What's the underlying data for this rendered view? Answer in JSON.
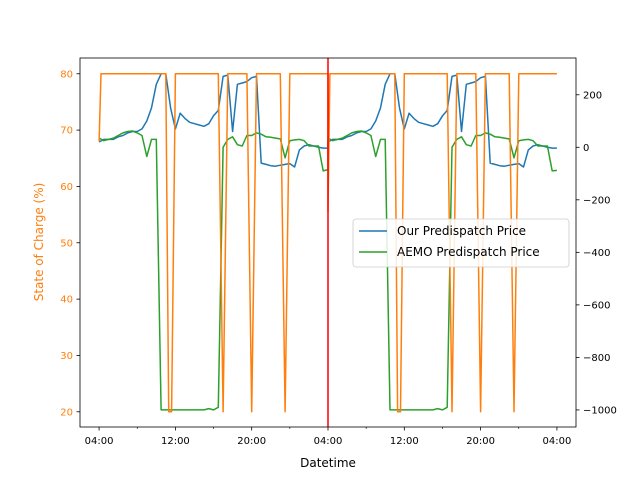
{
  "chart_data": {
    "type": "line",
    "xlabel": "Datetime",
    "ylabel_left": "State of Charge (%)",
    "x_hours_range": [
      -2,
      50
    ],
    "x_ticks": [
      {
        "hour": 0,
        "label": "04:00"
      },
      {
        "hour": 8,
        "label": "12:00"
      },
      {
        "hour": 16,
        "label": "20:00"
      },
      {
        "hour": 24,
        "label": "04:00"
      },
      {
        "hour": 32,
        "label": "12:00"
      },
      {
        "hour": 40,
        "label": "20:00"
      },
      {
        "hour": 48,
        "label": "04:00"
      }
    ],
    "x_minor_hours": [
      4,
      12,
      20,
      28,
      36,
      44
    ],
    "left_axis": {
      "ylim": [
        17.3,
        82.8
      ],
      "ticks": [
        20,
        30,
        40,
        50,
        60,
        70,
        80
      ],
      "color": "#ff7f0e"
    },
    "right_axis": {
      "ylim": [
        -1065,
        340
      ],
      "ticks": [
        200,
        0,
        -200,
        -400,
        -600,
        -800,
        -1000
      ],
      "color": "#000000"
    },
    "vertical_line": {
      "hour": 24,
      "color": "#ff0000"
    },
    "series": [
      {
        "name": "Our Predispatch Price",
        "axis": "right",
        "color": "#1f77b4",
        "points": [
          [
            0,
            20
          ],
          [
            0.5,
            30
          ],
          [
            1,
            30
          ],
          [
            1.5,
            30
          ],
          [
            2,
            40
          ],
          [
            2.5,
            45
          ],
          [
            3,
            55
          ],
          [
            3.5,
            60
          ],
          [
            4,
            60
          ],
          [
            4.5,
            70
          ],
          [
            5,
            100
          ],
          [
            5.5,
            150
          ],
          [
            6,
            240
          ],
          [
            6.5,
            280
          ],
          [
            7,
            280
          ],
          [
            7.5,
            150
          ],
          [
            8,
            70
          ],
          [
            8.5,
            130
          ],
          [
            9,
            110
          ],
          [
            9.5,
            95
          ],
          [
            10,
            90
          ],
          [
            10.5,
            85
          ],
          [
            11,
            80
          ],
          [
            11.5,
            90
          ],
          [
            12,
            120
          ],
          [
            12.5,
            140
          ],
          [
            13,
            270
          ],
          [
            13.5,
            275
          ],
          [
            14,
            60
          ],
          [
            14.5,
            240
          ],
          [
            15,
            245
          ],
          [
            15.5,
            250
          ],
          [
            16,
            265
          ],
          [
            16.5,
            270
          ],
          [
            17,
            -60
          ],
          [
            17.5,
            -65
          ],
          [
            18,
            -70
          ],
          [
            18.5,
            -72
          ],
          [
            19,
            -68
          ],
          [
            19.5,
            -65
          ],
          [
            20,
            -62
          ],
          [
            20.5,
            -75
          ],
          [
            21,
            -10
          ],
          [
            21.5,
            5
          ],
          [
            22,
            10
          ],
          [
            22.5,
            5
          ],
          [
            23,
            0
          ],
          [
            23.5,
            -3
          ],
          [
            24,
            -3
          ],
          [
            24,
            20
          ],
          [
            24.5,
            30
          ],
          [
            25,
            30
          ],
          [
            25.5,
            30
          ],
          [
            26,
            40
          ],
          [
            26.5,
            45
          ],
          [
            27,
            55
          ],
          [
            27.5,
            60
          ],
          [
            28,
            60
          ],
          [
            28.5,
            70
          ],
          [
            29,
            100
          ],
          [
            29.5,
            150
          ],
          [
            30,
            240
          ],
          [
            30.5,
            280
          ],
          [
            31,
            280
          ],
          [
            31.5,
            150
          ],
          [
            32,
            70
          ],
          [
            32.5,
            130
          ],
          [
            33,
            110
          ],
          [
            33.5,
            95
          ],
          [
            34,
            90
          ],
          [
            34.5,
            85
          ],
          [
            35,
            80
          ],
          [
            35.5,
            90
          ],
          [
            36,
            120
          ],
          [
            36.5,
            140
          ],
          [
            37,
            270
          ],
          [
            37.5,
            275
          ],
          [
            38,
            60
          ],
          [
            38.5,
            240
          ],
          [
            39,
            245
          ],
          [
            39.5,
            250
          ],
          [
            40,
            265
          ],
          [
            40.5,
            270
          ],
          [
            41,
            -60
          ],
          [
            41.5,
            -65
          ],
          [
            42,
            -70
          ],
          [
            42.5,
            -72
          ],
          [
            43,
            -68
          ],
          [
            43.5,
            -65
          ],
          [
            44,
            -62
          ],
          [
            44.5,
            -75
          ],
          [
            45,
            -10
          ],
          [
            45.5,
            5
          ],
          [
            46,
            10
          ],
          [
            46.5,
            5
          ],
          [
            47,
            0
          ],
          [
            47.5,
            -3
          ],
          [
            48,
            -3
          ]
        ]
      },
      {
        "name": "AEMO Predispatch Price",
        "axis": "right",
        "color": "#2ca02c",
        "points": [
          [
            0,
            35
          ],
          [
            0.5,
            25
          ],
          [
            1,
            30
          ],
          [
            1.5,
            35
          ],
          [
            2,
            45
          ],
          [
            2.5,
            55
          ],
          [
            3,
            60
          ],
          [
            3.5,
            62
          ],
          [
            4,
            55
          ],
          [
            4.5,
            45
          ],
          [
            5,
            -35
          ],
          [
            5.5,
            30
          ],
          [
            6,
            30
          ],
          [
            6.5,
            -1000
          ],
          [
            7,
            -1000
          ],
          [
            8,
            -1000
          ],
          [
            9,
            -1000
          ],
          [
            10,
            -1000
          ],
          [
            11,
            -1000
          ],
          [
            11.5,
            -995
          ],
          [
            12,
            -1000
          ],
          [
            12.5,
            -990
          ],
          [
            13,
            0
          ],
          [
            13.5,
            30
          ],
          [
            14,
            40
          ],
          [
            14.5,
            10
          ],
          [
            15,
            5
          ],
          [
            15.5,
            45
          ],
          [
            16,
            45
          ],
          [
            16.5,
            55
          ],
          [
            17,
            50
          ],
          [
            17.5,
            40
          ],
          [
            18,
            38
          ],
          [
            18.5,
            35
          ],
          [
            19,
            32
          ],
          [
            19.5,
            -40
          ],
          [
            20,
            25
          ],
          [
            20.5,
            28
          ],
          [
            21,
            30
          ],
          [
            21.5,
            25
          ],
          [
            22,
            5
          ],
          [
            22.5,
            5
          ],
          [
            23,
            5
          ],
          [
            23.5,
            -90
          ],
          [
            24,
            -85
          ],
          [
            24,
            35
          ],
          [
            24.5,
            25
          ],
          [
            25,
            30
          ],
          [
            25.5,
            35
          ],
          [
            26,
            45
          ],
          [
            26.5,
            55
          ],
          [
            27,
            60
          ],
          [
            27.5,
            62
          ],
          [
            28,
            55
          ],
          [
            28.5,
            45
          ],
          [
            29,
            -35
          ],
          [
            29.5,
            30
          ],
          [
            30,
            30
          ],
          [
            30.5,
            -1000
          ],
          [
            31,
            -1000
          ],
          [
            32,
            -1000
          ],
          [
            33,
            -1000
          ],
          [
            34,
            -1000
          ],
          [
            35,
            -1000
          ],
          [
            35.5,
            -995
          ],
          [
            36,
            -1000
          ],
          [
            36.5,
            -990
          ],
          [
            37,
            0
          ],
          [
            37.5,
            30
          ],
          [
            38,
            40
          ],
          [
            38.5,
            10
          ],
          [
            39,
            5
          ],
          [
            39.5,
            45
          ],
          [
            40,
            45
          ],
          [
            40.5,
            55
          ],
          [
            41,
            50
          ],
          [
            41.5,
            40
          ],
          [
            42,
            38
          ],
          [
            42.5,
            35
          ],
          [
            43,
            32
          ],
          [
            43.5,
            -40
          ],
          [
            44,
            25
          ],
          [
            44.5,
            28
          ],
          [
            45,
            30
          ],
          [
            45.5,
            25
          ],
          [
            46,
            5
          ],
          [
            46.5,
            5
          ],
          [
            47,
            5
          ],
          [
            47.5,
            -90
          ],
          [
            48,
            -88
          ]
        ]
      },
      {
        "name": "State of Charge",
        "axis": "left",
        "color": "#ff7f0e",
        "points": [
          [
            0,
            68
          ],
          [
            0.2,
            80
          ],
          [
            7,
            80
          ],
          [
            7.3,
            20
          ],
          [
            7.6,
            20
          ],
          [
            8,
            80
          ],
          [
            12.5,
            80
          ],
          [
            13,
            20
          ],
          [
            13.5,
            80
          ],
          [
            15.5,
            80
          ],
          [
            16,
            20
          ],
          [
            16.5,
            80
          ],
          [
            19,
            80
          ],
          [
            19.5,
            20
          ],
          [
            20,
            80
          ],
          [
            24,
            80
          ],
          [
            24,
            55.5
          ],
          [
            24.2,
            80
          ],
          [
            31,
            80
          ],
          [
            31.3,
            20
          ],
          [
            31.6,
            20
          ],
          [
            32,
            80
          ],
          [
            36.5,
            80
          ],
          [
            37,
            20
          ],
          [
            37.5,
            80
          ],
          [
            39.5,
            80
          ],
          [
            40,
            20
          ],
          [
            40.5,
            80
          ],
          [
            43,
            80
          ],
          [
            43.5,
            20
          ],
          [
            44,
            80
          ],
          [
            48,
            80
          ]
        ]
      }
    ],
    "legend": {
      "position": "center-right",
      "entries": [
        {
          "label": "Our Predispatch Price",
          "color": "#1f77b4"
        },
        {
          "label": "AEMO Predispatch Price",
          "color": "#2ca02c"
        }
      ]
    }
  }
}
